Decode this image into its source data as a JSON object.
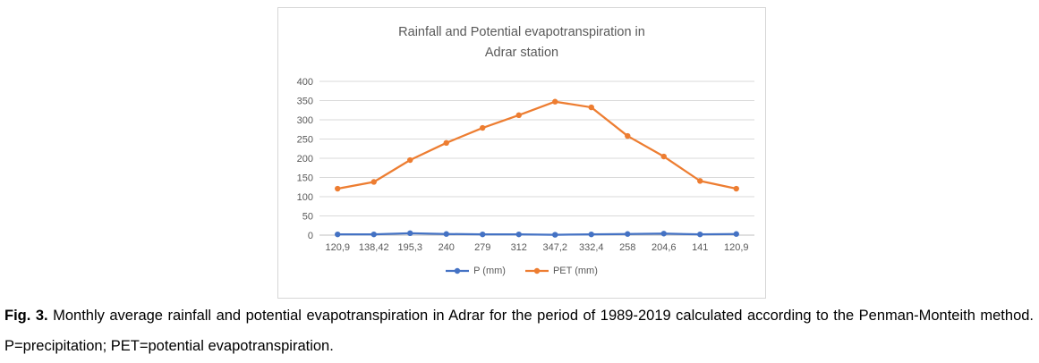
{
  "chart_data": {
    "type": "line",
    "title": "Rainfall and Potential evapotranspiration in Adrar station",
    "title_lines": [
      "Rainfall and Potential evapotranspiration in",
      "Adrar station"
    ],
    "categories": [
      "120,9",
      "138,42",
      "195,3",
      "240",
      "279",
      "312",
      "347,2",
      "332,4",
      "258",
      "204,6",
      "141",
      "120,9"
    ],
    "series": [
      {
        "name": "P (mm)",
        "color": "#4472C4",
        "values": [
          2,
          2,
          5,
          3,
          2,
          2,
          1,
          2,
          3,
          4,
          2,
          3
        ]
      },
      {
        "name": "PET (mm)",
        "color": "#ED7D31",
        "values": [
          120.9,
          138.42,
          195.3,
          240,
          279,
          312,
          347.2,
          332.4,
          258,
          204.6,
          141,
          120.9
        ]
      }
    ],
    "ylim": [
      0,
      400
    ],
    "yticks": [
      0,
      50,
      100,
      150,
      200,
      250,
      300,
      350,
      400
    ],
    "grid": true,
    "legend_position": "bottom",
    "text_color": "#595959",
    "gridline_color": "#D9D9D9",
    "axis_line_color": "#BFBFBF"
  },
  "figure": {
    "caption_label": "Fig. 3.",
    "caption_text": "Monthly average rainfall and potential evapotranspiration in Adrar for the period of 1989-2019 calculated according to the Penman-Monteith method. P=precipitation; PET=potential evapotranspiration."
  }
}
